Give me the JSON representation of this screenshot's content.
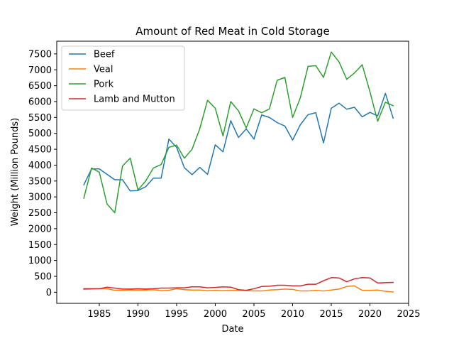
{
  "chart_data": {
    "type": "line",
    "title": "Amount of Red Meat in Cold Storage",
    "xlabel": "Date",
    "ylabel": "Weight (Million Pounds)",
    "xlim": [
      1979.5,
      2025
    ],
    "ylim": [
      -350,
      7900
    ],
    "xticks": [
      1985,
      1990,
      1995,
      2000,
      2005,
      2010,
      2015,
      2020,
      2025
    ],
    "yticks": [
      0,
      500,
      1000,
      1500,
      2000,
      2500,
      3000,
      3500,
      4000,
      4500,
      5000,
      5500,
      6000,
      6500,
      7000,
      7500
    ],
    "legend": "top-left",
    "grid": false,
    "x": [
      1983,
      1984,
      1985,
      1986,
      1987,
      1988,
      1989,
      1990,
      1991,
      1992,
      1993,
      1994,
      1995,
      1996,
      1997,
      1998,
      1999,
      2000,
      2001,
      2002,
      2003,
      2004,
      2005,
      2006,
      2007,
      2008,
      2009,
      2010,
      2011,
      2012,
      2013,
      2014,
      2015,
      2016,
      2017,
      2018,
      2019,
      2020,
      2021,
      2022,
      2023
    ],
    "series": [
      {
        "name": "Beef",
        "color": "#1f77b4",
        "values": [
          3380,
          3880,
          3880,
          3710,
          3540,
          3540,
          3190,
          3200,
          3320,
          3590,
          3590,
          4820,
          4560,
          3920,
          3700,
          3930,
          3710,
          4640,
          4420,
          5400,
          4870,
          5140,
          4820,
          5580,
          5500,
          5340,
          5230,
          4790,
          5270,
          5590,
          5650,
          4700,
          5790,
          5950,
          5760,
          5820,
          5520,
          5660,
          5550,
          6260,
          5480
        ]
      },
      {
        "name": "Veal",
        "color": "#ff7f0e",
        "values": [
          90,
          100,
          110,
          110,
          60,
          60,
          70,
          70,
          70,
          80,
          50,
          60,
          110,
          80,
          70,
          70,
          50,
          60,
          50,
          60,
          60,
          50,
          40,
          40,
          70,
          80,
          100,
          90,
          40,
          40,
          60,
          40,
          70,
          100,
          180,
          200,
          60,
          60,
          70,
          30,
          10
        ]
      },
      {
        "name": "Pork",
        "color": "#2ca02c",
        "values": [
          2960,
          3910,
          3780,
          2780,
          2500,
          3970,
          4220,
          3220,
          3500,
          3910,
          4020,
          4560,
          4630,
          4220,
          4500,
          5150,
          6040,
          5790,
          4920,
          6000,
          5710,
          5170,
          5770,
          5650,
          5770,
          6670,
          6760,
          5500,
          6120,
          7110,
          7130,
          6760,
          7560,
          7250,
          6700,
          6900,
          7160,
          6310,
          5380,
          5980,
          5870
        ]
      },
      {
        "name": "Lamb and Mutton",
        "color": "#d62728",
        "values": [
          110,
          110,
          110,
          160,
          130,
          100,
          100,
          110,
          100,
          110,
          130,
          130,
          140,
          140,
          170,
          170,
          140,
          150,
          170,
          160,
          80,
          60,
          110,
          180,
          190,
          220,
          220,
          200,
          200,
          250,
          250,
          360,
          460,
          450,
          330,
          420,
          460,
          450,
          290,
          300,
          310
        ]
      }
    ]
  }
}
